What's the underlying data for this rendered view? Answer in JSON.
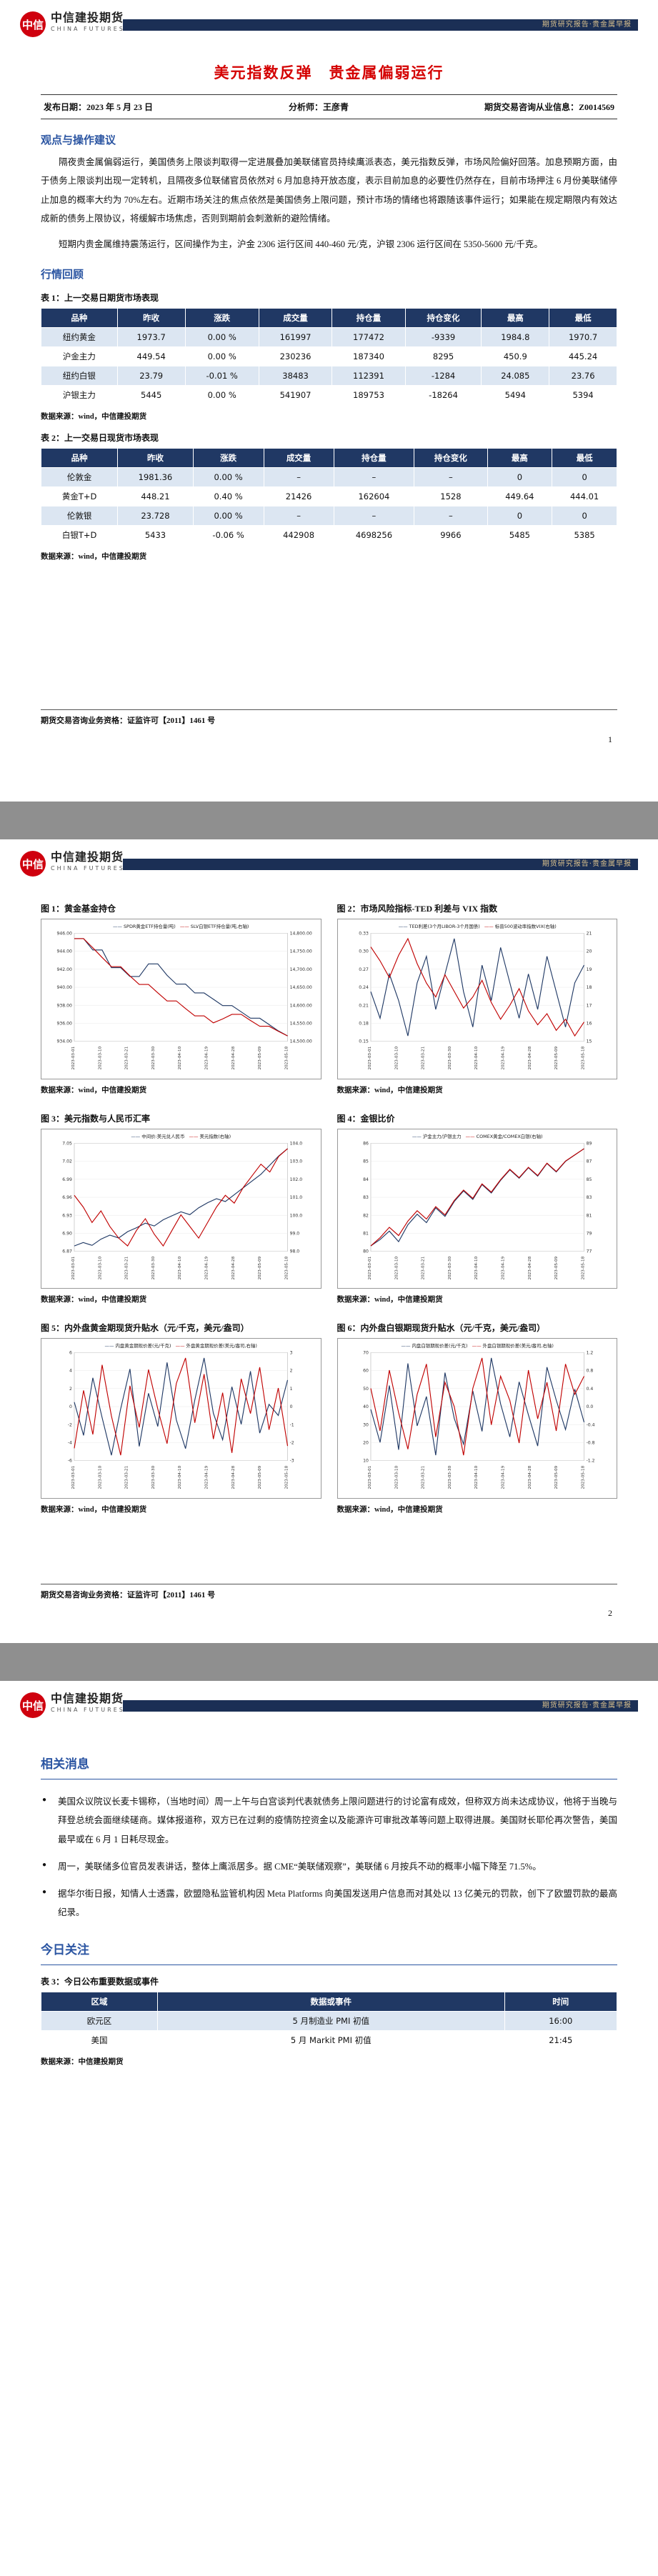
{
  "brand": {
    "logo_mark": "中信",
    "logo_text": "中信建投期货",
    "logo_sub": "CHINA FUTURES",
    "banner": "期货研究报告·贵金属早报"
  },
  "page1": {
    "title": "美元指数反弹　贵金属偏弱运行",
    "meta": {
      "publish": "发布日期：2023 年 5 月 23 日",
      "analyst": "分析师：王彦青",
      "license": "期货交易咨询从业信息：Z0014569"
    },
    "section1": "观点与操作建议",
    "para1": "隔夜贵金属偏弱运行，美国债务上限谈判取得一定进展叠加美联储官员持续鹰派表态，美元指数反弹，市场风险偏好回落。加息预期方面，由于债务上限谈判出现一定转机，且隔夜多位联储官员依然对 6 月加息持开放态度，表示目前加息的必要性仍然存在，目前市场押注 6 月份美联储停止加息的概率大约为 70%左右。近期市场关注的焦点依然是美国债务上限问题，预计市场的情绪也将跟随该事件运行；如果能在规定期限内有效达成新的债务上限协议，将缓解市场焦虑，否则到期前会刺激新的避险情绪。",
    "para2": "短期内贵金属维持震荡运行，区间操作为主，沪金 2306 运行区间 440-460 元/克，沪银 2306 运行区间在 5350-5600 元/千克。",
    "section2": "行情回顾",
    "table1": {
      "caption": "表 1：上一交易日期货市场表现",
      "headers": [
        "品种",
        "昨收",
        "涨跌",
        "成交量",
        "持仓量",
        "持仓变化",
        "最高",
        "最低"
      ],
      "rows": [
        [
          "纽约黄金",
          "1973.7",
          "0.00 %",
          "161997",
          "177472",
          "-9339",
          "1984.8",
          "1970.7"
        ],
        [
          "沪金主力",
          "449.54",
          "0.00 %",
          "230236",
          "187340",
          "8295",
          "450.9",
          "445.24"
        ],
        [
          "纽约白银",
          "23.79",
          "-0.01 %",
          "38483",
          "112391",
          "-1284",
          "24.085",
          "23.76"
        ],
        [
          "沪银主力",
          "5445",
          "0.00 %",
          "541907",
          "189753",
          "-18264",
          "5494",
          "5394"
        ]
      ]
    },
    "table1_source": "数据来源：wind，中信建投期货",
    "table2": {
      "caption": "表 2：上一交易日现货市场表现",
      "headers": [
        "品种",
        "昨收",
        "涨跌",
        "成交量",
        "持仓量",
        "持仓变化",
        "最高",
        "最低"
      ],
      "rows": [
        [
          "伦敦金",
          "1981.36",
          "0.00 %",
          "–",
          "–",
          "–",
          "0",
          "0"
        ],
        [
          "黄金T+D",
          "448.21",
          "0.40 %",
          "21426",
          "162604",
          "1528",
          "449.64",
          "444.01"
        ],
        [
          "伦敦银",
          "23.728",
          "0.00 %",
          "–",
          "–",
          "–",
          "0",
          "0"
        ],
        [
          "白银T+D",
          "5433",
          "-0.06 %",
          "442908",
          "4698256",
          "9966",
          "5485",
          "5385"
        ]
      ]
    },
    "table2_source": "数据来源：wind，中信建投期货",
    "footer": "期货交易咨询业务资格：证监许可【2011】1461 号",
    "page_num": "1"
  },
  "page2": {
    "footer": "期货交易咨询业务资格：证监许可【2011】1461 号",
    "page_num": "2"
  },
  "page3": {
    "section1": "相关消息",
    "bullets": [
      "美国众议院议长麦卡锡称，（当地时间）周一上午与白宫谈判代表就债务上限问题进行的讨论富有成效，但称双方尚未达成协议，他将于当晚与拜登总统会面继续磋商。媒体报道称，双方已在过剩的疫情防控资金以及能源许可审批改革等问题上取得进展。美国财长耶伦再次警告，美国最早或在 6 月 1 日耗尽现金。",
      "周一，美联储多位官员发表讲话，整体上鹰派居多。据 CME“美联储观察”，美联储 6 月按兵不动的概率小幅下降至 71.5%。",
      "据华尔街日报，知情人士透露，欧盟隐私监管机构因 Meta Platforms 向美国发送用户信息而对其处以 13 亿美元的罚款，创下了欧盟罚款的最高纪录。"
    ],
    "section2": "今日关注",
    "table3": {
      "caption": "表 3：今日公布重要数据或事件",
      "headers": [
        "区域",
        "数据或事件",
        "时间"
      ],
      "rows": [
        [
          "欧元区",
          "5 月制造业 PMI 初值",
          "16:00"
        ],
        [
          "美国",
          "5 月 Markit PMI 初值",
          "21:45"
        ]
      ]
    },
    "table3_source": "数据来源：中信建投期货"
  },
  "chart_data": [
    {
      "type": "line",
      "title": "图 1：黄金基金持仓",
      "source": "数据来源：wind，中信建投期货",
      "left_ticks": [
        "946.00",
        "944.00",
        "942.00",
        "940.00",
        "938.00",
        "936.00",
        "934.00"
      ],
      "right_ticks": [
        "14,800.00",
        "14,750.00",
        "14,700.00",
        "14,650.00",
        "14,600.00",
        "14,550.00",
        "14,500.00"
      ],
      "x_labels": [
        "2023-03-01",
        "2023-03-10",
        "2023-03-21",
        "2023-03-30",
        "2023-04-10",
        "2023-04-19",
        "2023-04-28",
        "2023-05-09",
        "2023-05-18"
      ],
      "series": [
        {
          "name": "SPDR黄金ETF持仓量(吨)",
          "color": "#1f3864",
          "axis": "left",
          "values": [
            943.9,
            943.9,
            943.0,
            943.0,
            941.6,
            941.6,
            940.9,
            940.9,
            941.9,
            941.9,
            941.0,
            940.3,
            940.3,
            939.6,
            939.6,
            939.1,
            938.6,
            938.6,
            938.1,
            937.6,
            937.6,
            937.1,
            936.6,
            936.2
          ]
        },
        {
          "name": "SLV白银ETF持仓量(吨,右轴)",
          "color": "#c00000",
          "axis": "right",
          "values": [
            14769,
            14769,
            14745,
            14720,
            14696,
            14696,
            14672,
            14650,
            14650,
            14628,
            14607,
            14607,
            14587,
            14568,
            14568,
            14550,
            14560,
            14572,
            14572,
            14556,
            14541,
            14541,
            14528,
            14516
          ]
        }
      ]
    },
    {
      "type": "line",
      "title": "图 2：市场风险指标-TED 利差与 VIX 指数",
      "source": "数据来源：wind，中信建投期货",
      "left_ticks": [
        "0.33",
        "0.30",
        "0.27",
        "0.24",
        "0.21",
        "0.18",
        "0.15"
      ],
      "right_ticks": [
        "21",
        "20",
        "19",
        "18",
        "17",
        "16",
        "15"
      ],
      "x_labels": [
        "2023-03-01",
        "2023-03-10",
        "2023-03-21",
        "2023-03-30",
        "2023-04-10",
        "2023-04-19",
        "2023-04-28",
        "2023-05-09",
        "2023-05-18"
      ],
      "series": [
        {
          "name": "TED利差(3个月LIBOR-3个月国债)",
          "color": "#1f3864",
          "axis": "left",
          "values": [
            0.24,
            0.21,
            0.26,
            0.23,
            0.19,
            0.25,
            0.28,
            0.22,
            0.26,
            0.3,
            0.24,
            0.2,
            0.27,
            0.23,
            0.29,
            0.25,
            0.21,
            0.26,
            0.22,
            0.28,
            0.24,
            0.2,
            0.25,
            0.27
          ]
        },
        {
          "name": "标普500波动率指数VIX(右轴)",
          "color": "#c00000",
          "axis": "right",
          "values": [
            19.7,
            19.2,
            18.6,
            19.4,
            20.0,
            19.1,
            18.4,
            17.9,
            18.7,
            18.1,
            17.5,
            17.9,
            18.5,
            17.7,
            17.1,
            17.6,
            18.2,
            17.4,
            16.9,
            17.3,
            16.7,
            17.1,
            16.5,
            17.0
          ]
        }
      ]
    },
    {
      "type": "line",
      "title": "图 3：美元指数与人民币汇率",
      "source": "数据来源：wind，中信建投期货",
      "left_ticks": [
        "7.05",
        "7.02",
        "6.99",
        "6.96",
        "6.93",
        "6.90",
        "6.87"
      ],
      "right_ticks": [
        "104.0",
        "103.0",
        "102.0",
        "101.0",
        "100.0",
        "99.0",
        "98.0"
      ],
      "x_labels": [
        "2023-03-01",
        "2023-03-10",
        "2023-03-21",
        "2023-03-30",
        "2023-04-10",
        "2023-04-19",
        "2023-04-28",
        "2023-05-09",
        "2023-05-18"
      ],
      "series": [
        {
          "name": "中间价:美元兑人民币",
          "color": "#1f3864",
          "axis": "left",
          "values": [
            6.87,
            6.876,
            6.871,
            6.882,
            6.889,
            6.884,
            6.895,
            6.902,
            6.91,
            6.905,
            6.916,
            6.923,
            6.93,
            6.925,
            6.937,
            6.946,
            6.953,
            6.948,
            6.96,
            6.972,
            6.984,
            6.996,
            7.012,
            7.028,
            7.041
          ]
        },
        {
          "name": "美元指数(右轴)",
          "color": "#c00000",
          "axis": "right",
          "values": [
            102.2,
            101.9,
            101.5,
            101.8,
            101.4,
            101.1,
            100.9,
            101.3,
            101.6,
            101.2,
            100.9,
            101.3,
            101.7,
            101.4,
            101.1,
            101.5,
            101.9,
            102.2,
            102.0,
            102.4,
            102.7,
            103.0,
            102.8,
            103.2,
            103.4
          ]
        }
      ]
    },
    {
      "type": "line",
      "title": "图 4：金银比价",
      "source": "数据来源：wind，中信建投期货",
      "left_ticks": [
        "86",
        "85",
        "84",
        "83",
        "82",
        "81",
        "80"
      ],
      "right_ticks": [
        "89",
        "87",
        "85",
        "83",
        "81",
        "79",
        "77"
      ],
      "x_labels": [
        "2023-03-01",
        "2023-03-10",
        "2023-03-21",
        "2023-03-30",
        "2023-04-10",
        "2023-04-19",
        "2023-04-28",
        "2023-05-09",
        "2023-05-18"
      ],
      "series": [
        {
          "name": "沪金主力/沪银主力",
          "color": "#1f3864",
          "axis": "left",
          "values": [
            80.6,
            80.9,
            81.3,
            80.8,
            81.6,
            82.1,
            81.7,
            82.4,
            82.0,
            82.7,
            83.2,
            82.8,
            83.5,
            83.1,
            83.7,
            84.2,
            83.8,
            84.3,
            83.9,
            84.5,
            84.1,
            84.6,
            84.9,
            85.2
          ]
        },
        {
          "name": "COMEX黄金/COMEX白银(右轴)",
          "color": "#c00000",
          "axis": "right",
          "values": [
            83.2,
            83.6,
            84.1,
            83.7,
            84.4,
            84.9,
            84.5,
            85.1,
            84.7,
            85.4,
            85.9,
            85.5,
            86.2,
            85.8,
            86.4,
            86.9,
            86.5,
            87.0,
            86.6,
            87.2,
            86.8,
            87.3,
            87.6,
            87.9
          ]
        }
      ]
    },
    {
      "type": "line",
      "title": "图 5：内外盘黄金期现货升贴水（元/千克，美元/盎司）",
      "source": "数据来源：wind，中信建投期货",
      "left_ticks": [
        "6",
        "4",
        "2",
        "0",
        "-2",
        "-4",
        "-6"
      ],
      "right_ticks": [
        "3",
        "2",
        "1",
        "0",
        "-1",
        "-2",
        "-3"
      ],
      "x_labels": [
        "2023-03-01",
        "2023-03-10",
        "2023-03-21",
        "2023-03-30",
        "2023-04-10",
        "2023-04-19",
        "2023-04-28",
        "2023-05-09",
        "2023-05-18"
      ],
      "series": [
        {
          "name": "内盘黄金期现价差(元/千克)",
          "color": "#1f3864",
          "axis": "left",
          "values": [
            3.1,
            1.6,
            4.2,
            2.4,
            0.7,
            2.8,
            4.6,
            1.1,
            3.5,
            2.0,
            4.9,
            2.3,
            1.0,
            3.2,
            5.1,
            2.6,
            1.4,
            3.8,
            2.1,
            4.5,
            1.7,
            3.0,
            2.5,
            4.1
          ]
        },
        {
          "name": "外盘黄金期现价差(美元/盎司,右轴)",
          "color": "#c00000",
          "axis": "right",
          "values": [
            -1.9,
            0.6,
            -1.3,
            1.7,
            -0.5,
            -2.2,
            0.8,
            -1.0,
            1.5,
            -0.2,
            -1.7,
            0.9,
            2.0,
            -0.8,
            1.3,
            -1.5,
            0.5,
            -2.1,
            1.1,
            -0.4,
            1.6,
            -1.1,
            0.7,
            -1.8
          ]
        }
      ]
    },
    {
      "type": "line",
      "title": "图 6：内外盘白银期现货升贴水（元/千克，美元/盎司）",
      "source": "数据来源：wind，中信建投期货",
      "left_ticks": [
        "70",
        "60",
        "50",
        "40",
        "30",
        "20",
        "10"
      ],
      "right_ticks": [
        "1.2",
        "0.8",
        "0.4",
        "0.0",
        "-0.4",
        "-0.8",
        "-1.2"
      ],
      "x_labels": [
        "2023-03-01",
        "2023-03-10",
        "2023-03-21",
        "2023-03-30",
        "2023-04-10",
        "2023-04-19",
        "2023-04-28",
        "2023-05-09",
        "2023-05-18"
      ],
      "series": [
        {
          "name": "内盘白银期现价差(元/千克)",
          "color": "#1f3864",
          "axis": "left",
          "values": [
            36,
            18,
            49,
            14,
            61,
            27,
            43,
            11,
            56,
            31,
            17,
            46,
            24,
            64,
            39,
            21,
            51,
            33,
            16,
            59,
            41,
            25,
            47,
            29
          ]
        },
        {
          "name": "外盘白银期现价差(美元/盎司,右轴)",
          "color": "#c00000",
          "axis": "right",
          "values": [
            0.5,
            -0.2,
            0.8,
            0.1,
            -0.5,
            0.4,
            0.9,
            -0.3,
            0.6,
            0.2,
            -0.6,
            0.5,
            1.0,
            -0.1,
            0.7,
            0.3,
            -0.4,
            0.8,
            0.0,
            0.6,
            -0.2,
            0.9,
            0.4,
            0.7
          ]
        }
      ]
    }
  ]
}
